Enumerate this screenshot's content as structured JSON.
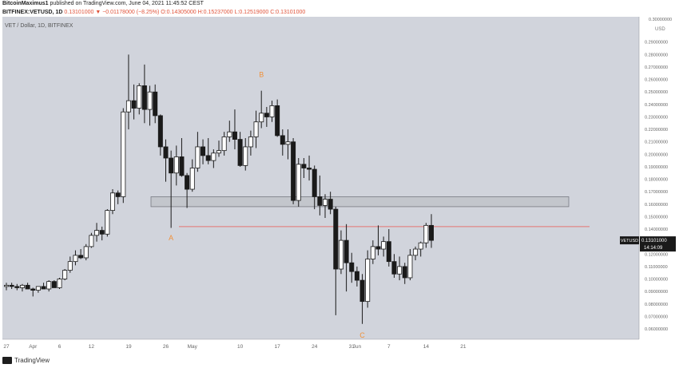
{
  "header": {
    "author": "BitcoinMaximus1",
    "published_text": "published on TradingView.com, June 04, 2021 11:45:52 CEST",
    "symbol": "BITFINEX:VETUSD, 1D",
    "change": "0.13101000 ▼ −0.01178000 (−8.25%)",
    "ohlc": "O:0.14305000 H:0.15237000 L:0.12519000 C:0.13101000"
  },
  "footer": {
    "brand": "TradingView"
  },
  "colors": {
    "background": "#d1d4dc",
    "support_box": "#c3c6cc",
    "resistance_line": "#e57373",
    "label": "#f0913a"
  },
  "chart_data": {
    "type": "candlestick",
    "title": "VET / Dollar, 1D, BITFINEX",
    "currency": "USD",
    "ylim": [
      0.05,
      0.3
    ],
    "y_ticks": [
      "0.06000000",
      "0.07000000",
      "0.08000000",
      "0.09000000",
      "0.10000000",
      "0.11000000",
      "0.12000000",
      "0.13000000",
      "0.14000000",
      "0.15000000",
      "0.16000000",
      "0.17000000",
      "0.18000000",
      "0.19000000",
      "0.20000000",
      "0.21000000",
      "0.22000000",
      "0.23000000",
      "0.24000000",
      "0.25000000",
      "0.26000000",
      "0.27000000",
      "0.28000000",
      "0.29000000"
    ],
    "y_top_label": "0.30000000",
    "x_ticks": [
      {
        "label": "27",
        "day": 0
      },
      {
        "label": "Apr",
        "day": 5
      },
      {
        "label": "6",
        "day": 10
      },
      {
        "label": "12",
        "day": 16
      },
      {
        "label": "19",
        "day": 23
      },
      {
        "label": "26",
        "day": 30
      },
      {
        "label": "May",
        "day": 35
      },
      {
        "label": "10",
        "day": 44
      },
      {
        "label": "17",
        "day": 51
      },
      {
        "label": "24",
        "day": 58
      },
      {
        "label": "31",
        "day": 65
      },
      {
        "label": "Jun",
        "day": 66
      },
      {
        "label": "7",
        "day": 72
      },
      {
        "label": "14",
        "day": 79
      },
      {
        "label": "21",
        "day": 86
      }
    ],
    "candles": [
      [
        0.094,
        0.097,
        0.091,
        0.095
      ],
      [
        0.095,
        0.097,
        0.092,
        0.094
      ],
      [
        0.094,
        0.096,
        0.091,
        0.093
      ],
      [
        0.093,
        0.096,
        0.09,
        0.095
      ],
      [
        0.095,
        0.097,
        0.092,
        0.092
      ],
      [
        0.092,
        0.093,
        0.086,
        0.091
      ],
      [
        0.091,
        0.094,
        0.089,
        0.094
      ],
      [
        0.094,
        0.097,
        0.092,
        0.092
      ],
      [
        0.092,
        0.099,
        0.09,
        0.098
      ],
      [
        0.098,
        0.099,
        0.093,
        0.093
      ],
      [
        0.093,
        0.101,
        0.092,
        0.1
      ],
      [
        0.1,
        0.108,
        0.099,
        0.107
      ],
      [
        0.107,
        0.118,
        0.105,
        0.114
      ],
      [
        0.114,
        0.123,
        0.111,
        0.119
      ],
      [
        0.119,
        0.124,
        0.116,
        0.117
      ],
      [
        0.117,
        0.128,
        0.115,
        0.126
      ],
      [
        0.126,
        0.137,
        0.125,
        0.135
      ],
      [
        0.135,
        0.145,
        0.13,
        0.139
      ],
      [
        0.139,
        0.142,
        0.131,
        0.136
      ],
      [
        0.136,
        0.156,
        0.134,
        0.155
      ],
      [
        0.155,
        0.172,
        0.152,
        0.169
      ],
      [
        0.169,
        0.171,
        0.16,
        0.166
      ],
      [
        0.166,
        0.237,
        0.161,
        0.234
      ],
      [
        0.234,
        0.28,
        0.22,
        0.243
      ],
      [
        0.243,
        0.256,
        0.228,
        0.237
      ],
      [
        0.237,
        0.257,
        0.232,
        0.255
      ],
      [
        0.255,
        0.272,
        0.225,
        0.236
      ],
      [
        0.236,
        0.255,
        0.223,
        0.25
      ],
      [
        0.25,
        0.256,
        0.225,
        0.231
      ],
      [
        0.231,
        0.232,
        0.199,
        0.206
      ],
      [
        0.206,
        0.212,
        0.178,
        0.197
      ],
      [
        0.197,
        0.203,
        0.141,
        0.185
      ],
      [
        0.185,
        0.207,
        0.175,
        0.198
      ],
      [
        0.198,
        0.213,
        0.182,
        0.183
      ],
      [
        0.183,
        0.185,
        0.157,
        0.172
      ],
      [
        0.172,
        0.196,
        0.17,
        0.189
      ],
      [
        0.189,
        0.218,
        0.186,
        0.206
      ],
      [
        0.206,
        0.212,
        0.192,
        0.199
      ],
      [
        0.199,
        0.213,
        0.192,
        0.195
      ],
      [
        0.195,
        0.204,
        0.189,
        0.201
      ],
      [
        0.201,
        0.211,
        0.198,
        0.203
      ],
      [
        0.203,
        0.218,
        0.199,
        0.214
      ],
      [
        0.214,
        0.227,
        0.21,
        0.218
      ],
      [
        0.218,
        0.236,
        0.204,
        0.212
      ],
      [
        0.212,
        0.218,
        0.19,
        0.191
      ],
      [
        0.191,
        0.213,
        0.187,
        0.206
      ],
      [
        0.206,
        0.219,
        0.199,
        0.214
      ],
      [
        0.214,
        0.235,
        0.205,
        0.226
      ],
      [
        0.226,
        0.251,
        0.221,
        0.233
      ],
      [
        0.233,
        0.238,
        0.222,
        0.23
      ],
      [
        0.23,
        0.243,
        0.226,
        0.239
      ],
      [
        0.239,
        0.244,
        0.214,
        0.215
      ],
      [
        0.215,
        0.22,
        0.199,
        0.208
      ],
      [
        0.208,
        0.22,
        0.196,
        0.21
      ],
      [
        0.21,
        0.213,
        0.16,
        0.163
      ],
      [
        0.163,
        0.197,
        0.158,
        0.192
      ],
      [
        0.192,
        0.197,
        0.181,
        0.189
      ],
      [
        0.189,
        0.199,
        0.179,
        0.188
      ],
      [
        0.188,
        0.191,
        0.156,
        0.166
      ],
      [
        0.166,
        0.183,
        0.151,
        0.159
      ],
      [
        0.159,
        0.168,
        0.149,
        0.164
      ],
      [
        0.164,
        0.17,
        0.152,
        0.156
      ],
      [
        0.156,
        0.158,
        0.071,
        0.108
      ],
      [
        0.108,
        0.139,
        0.104,
        0.131
      ],
      [
        0.131,
        0.144,
        0.09,
        0.113
      ],
      [
        0.113,
        0.121,
        0.097,
        0.106
      ],
      [
        0.106,
        0.11,
        0.094,
        0.099
      ],
      [
        0.099,
        0.104,
        0.064,
        0.082
      ],
      [
        0.082,
        0.123,
        0.077,
        0.116
      ],
      [
        0.116,
        0.131,
        0.112,
        0.126
      ],
      [
        0.126,
        0.143,
        0.119,
        0.124
      ],
      [
        0.124,
        0.134,
        0.118,
        0.13
      ],
      [
        0.13,
        0.14,
        0.11,
        0.114
      ],
      [
        0.114,
        0.12,
        0.101,
        0.104
      ],
      [
        0.104,
        0.118,
        0.099,
        0.11
      ],
      [
        0.11,
        0.113,
        0.096,
        0.101
      ],
      [
        0.101,
        0.124,
        0.099,
        0.119
      ],
      [
        0.119,
        0.126,
        0.115,
        0.124
      ],
      [
        0.124,
        0.13,
        0.118,
        0.129
      ],
      [
        0.129,
        0.145,
        0.125,
        0.143
      ],
      [
        0.143,
        0.152,
        0.125,
        0.131
      ]
    ],
    "support_zone": [
      0.158,
      0.166
    ],
    "resistance_level": 0.142,
    "wave_labels": [
      {
        "text": "A",
        "index": 31,
        "price": 0.131
      },
      {
        "text": "B",
        "index": 48,
        "price": 0.262
      },
      {
        "text": "C",
        "index": 67,
        "price": 0.053
      }
    ],
    "last_price_tag": {
      "price": "0.13101000",
      "countdown": "14:14:09",
      "symbol": "VETUSD"
    }
  }
}
